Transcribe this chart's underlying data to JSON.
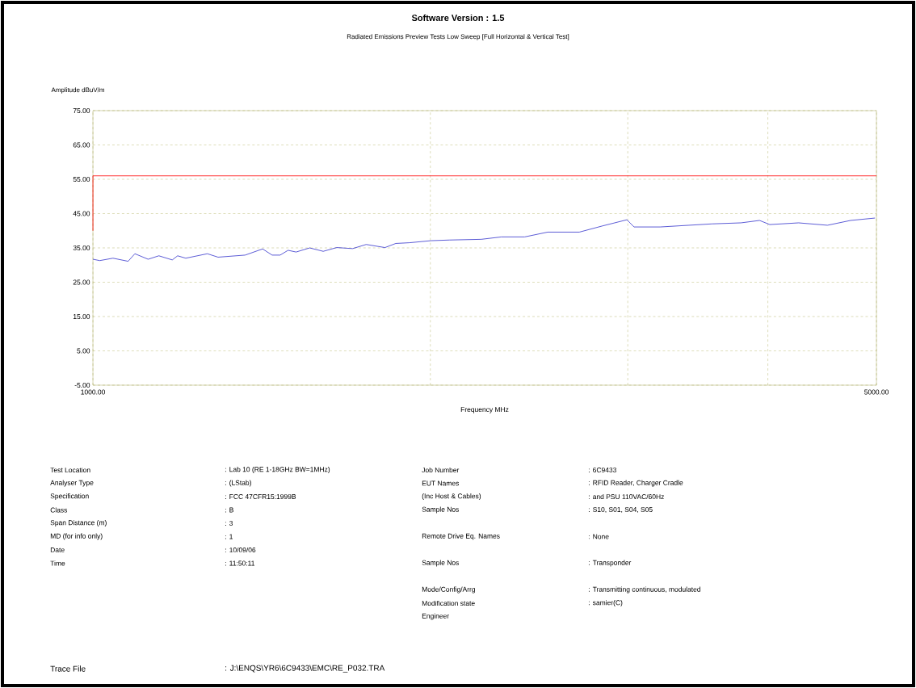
{
  "chart_data": {
    "type": "line",
    "title": "Software Version : 1.5",
    "subtitle": "Radiated Emissions Preview Tests Low Sweep [Full Horizontal & Vertical Test]",
    "xlabel": "Frequency MHz",
    "ylabel": "Amplitude dBuV/m",
    "log": "x",
    "xlim": [
      1000,
      5000
    ],
    "xticks": [
      {
        "value": 1000,
        "label": "1000.00"
      },
      {
        "value": 2000,
        "label": null
      },
      {
        "value": 3000,
        "label": null
      },
      {
        "value": 4000,
        "label": null
      },
      {
        "value": 5000,
        "label": "5000.00"
      }
    ],
    "ylim": [
      -5,
      75
    ],
    "yticks": [
      {
        "value": -5,
        "label": "-5.00"
      },
      {
        "value": 5,
        "label": "5.00"
      },
      {
        "value": 15,
        "label": "15.00"
      },
      {
        "value": 25,
        "label": "25.00"
      },
      {
        "value": 35,
        "label": "35.00"
      },
      {
        "value": 45,
        "label": "45.00"
      },
      {
        "value": 55,
        "label": "55.00"
      },
      {
        "value": 65,
        "label": "65.00"
      },
      {
        "value": 75,
        "label": "75.00"
      }
    ],
    "grid": true,
    "marker": "none",
    "line_style": "solid",
    "series": [
      {
        "color": "#ff0000",
        "x": [
          1000,
          1000,
          5000
        ],
        "values": [
          40,
          56,
          56
        ]
      },
      {
        "color": "#3333cc",
        "x": [
          1000,
          1014,
          1042,
          1075,
          1090,
          1120,
          1145,
          1177,
          1190,
          1210,
          1265,
          1293,
          1367,
          1417,
          1445,
          1469,
          1493,
          1518,
          1561,
          1605,
          1650,
          1705,
          1753,
          1822,
          1863,
          1915,
          2002,
          2081,
          2220,
          2314,
          2427,
          2545,
          2716,
          2848,
          2995,
          3039,
          3206,
          3402,
          3567,
          3785,
          3933,
          4016,
          4261,
          4521,
          4741,
          4985
        ],
        "values": [
          31.7,
          31.3,
          32.0,
          31.1,
          33.3,
          31.7,
          32.7,
          31.5,
          32.7,
          32.0,
          33.3,
          32.3,
          32.9,
          34.7,
          32.9,
          32.9,
          34.3,
          33.8,
          35.0,
          34.0,
          35.1,
          34.8,
          36.0,
          35.1,
          36.3,
          36.5,
          37.1,
          37.3,
          37.5,
          38.2,
          38.2,
          39.6,
          39.6,
          41.4,
          43.2,
          41.1,
          41.1,
          41.6,
          42.0,
          42.3,
          43.0,
          41.8,
          42.3,
          41.6,
          43.0,
          43.7
        ]
      }
    ],
    "annotations": [
      "Test Location",
      ": Lab 10 (RE 1-18GHz BW=1MHz)",
      "Analyser Type",
      ": (LStab)",
      "Specification",
      ": FCC 47CFR15:1999B",
      "Class",
      ": B",
      "Span Distance (m)",
      ": 3",
      "MD (for info only)",
      ": 1",
      "Date",
      ": 10/09/06",
      "Time",
      ": 11:50:11",
      "Job Number",
      ": 6C9433",
      "EUT Names",
      ": RFID Reader, Charger Cradle",
      "(Inc Host & Cables)",
      ": and PSU 110VAC/60Hz",
      "Sample Nos",
      ": S10, S01, S04, S05",
      "Remote Drive Eq. Names",
      ": None",
      "Sample Nos",
      ": Transponder",
      "Mode/Config/Arrg",
      ": Transmitting continuous, modulated",
      "Modification state",
      ": samier(C)",
      "Engineer",
      "Trace File",
      ": J:\\ENQS\\YR6\\6C9433\\EMC\\RE_P032.TRA"
    ]
  }
}
